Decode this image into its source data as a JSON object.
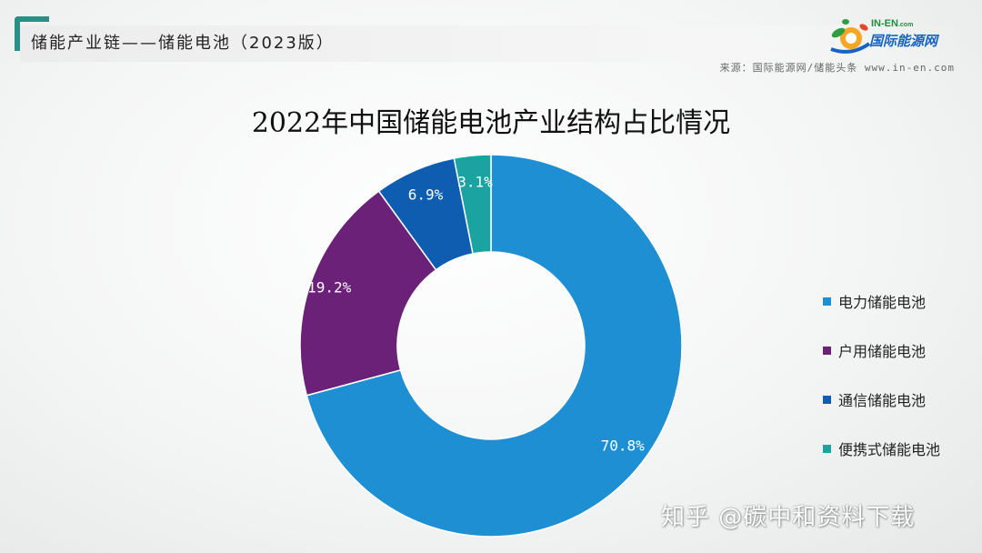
{
  "header": {
    "title": "储能产业链——储能电池（2023版）"
  },
  "logo": {
    "top": "IN-EN",
    "top_suffix": ".com",
    "main": "国际能源网"
  },
  "source": "来源：国际能源网/储能头条 www.in-en.com",
  "watermark": "知乎 @碳中和资料下载",
  "chart_data": {
    "type": "pie",
    "title": "2022年中国储能电池产业结构占比情况",
    "donut": true,
    "legend_position": "right",
    "categories": [
      "电力储能电池",
      "户用储能电池",
      "通信储能电池",
      "便携式储能电池"
    ],
    "values": [
      70.8,
      19.2,
      6.9,
      3.1
    ],
    "labels": [
      "70.8%",
      "19.2%",
      "6.9%",
      "3.1%"
    ],
    "colors": [
      "#1e8fd3",
      "#6b2178",
      "#0f5db0",
      "#1aa3a0"
    ]
  }
}
